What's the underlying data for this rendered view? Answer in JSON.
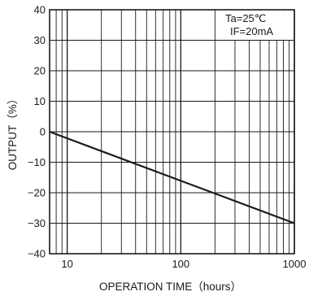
{
  "chart_data": {
    "type": "line",
    "xlabel": "OPERATION TIME（hours）",
    "ylabel": "OUTPUT（%）",
    "x_scale": "log",
    "xlim": [
      7,
      1000
    ],
    "ylim": [
      -40,
      40
    ],
    "x_ticks": [
      10,
      100,
      1000
    ],
    "x_tick_labels": [
      "10",
      "100",
      "1000"
    ],
    "y_ticks": [
      40,
      30,
      20,
      10,
      0,
      -10,
      -20,
      -30,
      -40
    ],
    "y_tick_labels": [
      "40",
      "30",
      "20",
      "10",
      "0",
      "−10",
      "−20",
      "−30",
      "−40"
    ],
    "grid": true,
    "conditions": [
      "Ta=25℃",
      "IF=20mA"
    ],
    "series": [
      {
        "x": [
          7,
          1000
        ],
        "y": [
          0,
          -30
        ]
      }
    ]
  }
}
